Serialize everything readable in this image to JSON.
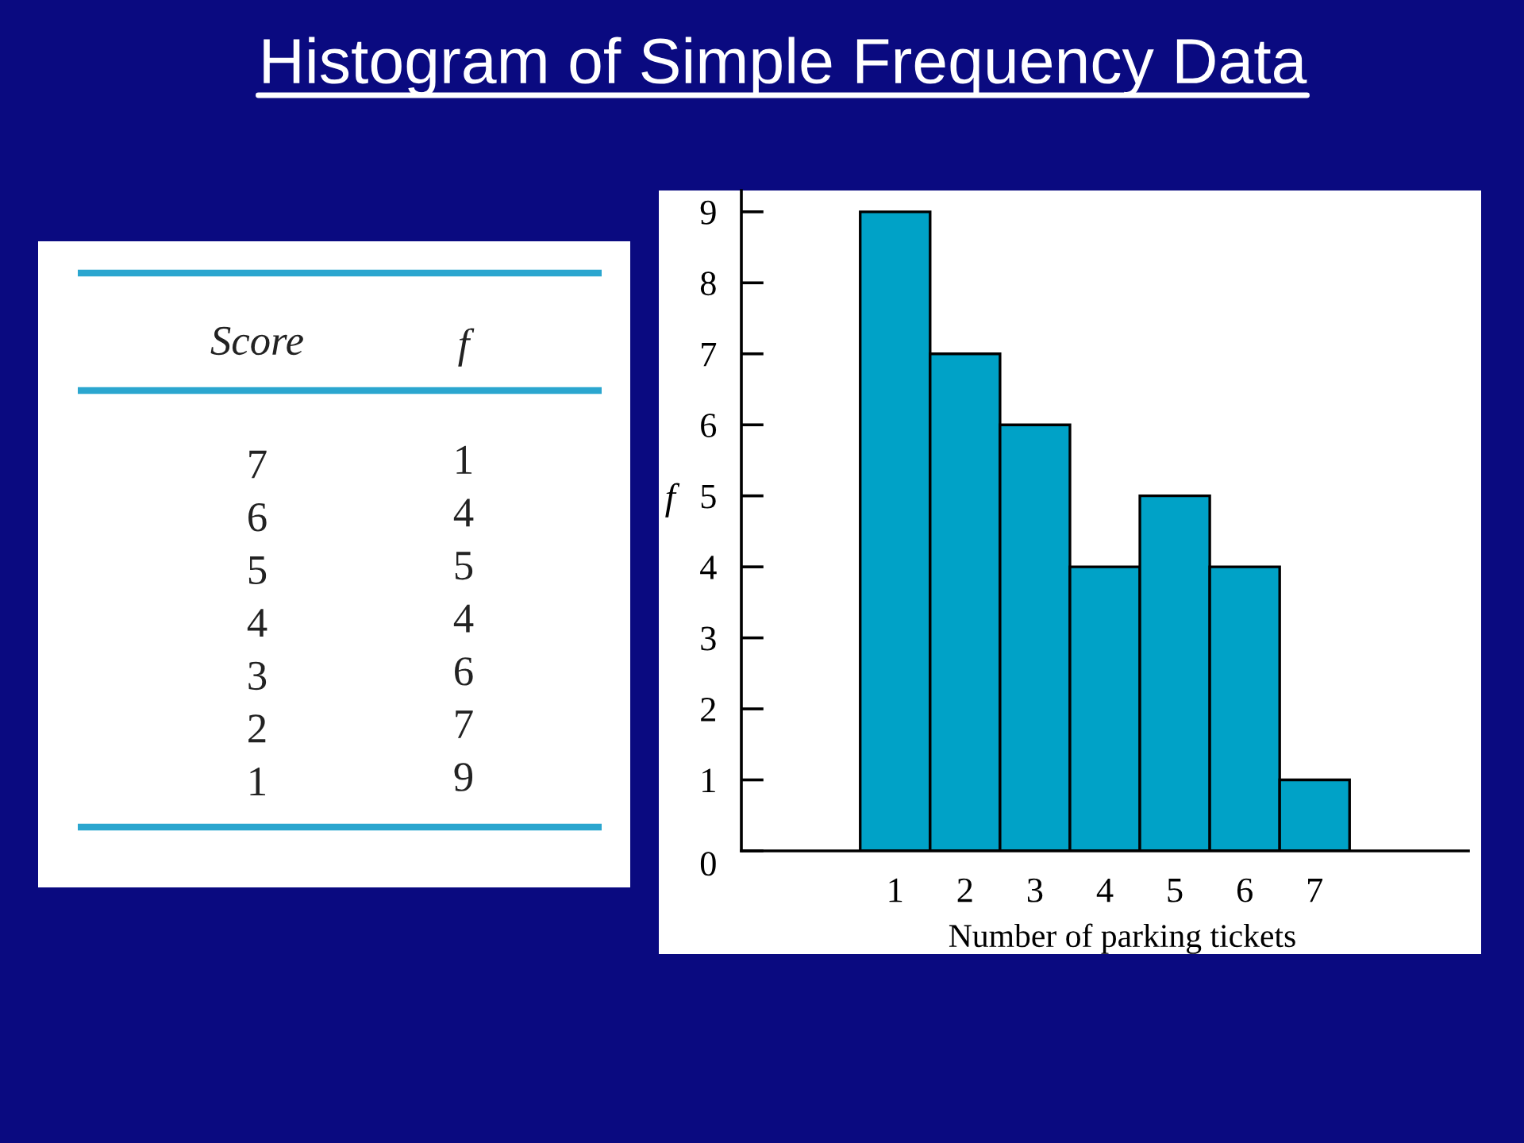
{
  "chart_data": [
    {
      "type": "heatmap",
      "ylabel": "Score",
      "categories": [
        "f"
      ],
      "y_categories": [
        "7",
        "6",
        "5",
        "4",
        "3",
        "2",
        "1"
      ],
      "cells": [
        [
          1
        ],
        [
          4
        ],
        [
          5
        ],
        [
          4
        ],
        [
          6
        ],
        [
          7
        ],
        [
          9
        ]
      ],
      "color": "#ffffff",
      "data_labels": true
    },
    {
      "type": "histogram",
      "title": "Histogram of Simple Frequency Data",
      "xlabel": "Number of parking tickets",
      "ylabel": "f",
      "bins": [
        0.5,
        1.5,
        2.5,
        3.5,
        4.5,
        5.5,
        6.5,
        7.5
      ],
      "values": [
        9,
        7,
        6,
        4,
        5,
        4,
        1
      ],
      "color": "#00a2c7",
      "xlim": [
        -1.2,
        9.2
      ],
      "ylim": [
        0,
        9.3
      ],
      "xticks": [
        1,
        2,
        3,
        4,
        5,
        6,
        7
      ],
      "yticks": [
        0,
        1,
        2,
        3,
        4,
        5,
        6,
        7,
        8,
        9
      ],
      "grid": false
    }
  ]
}
